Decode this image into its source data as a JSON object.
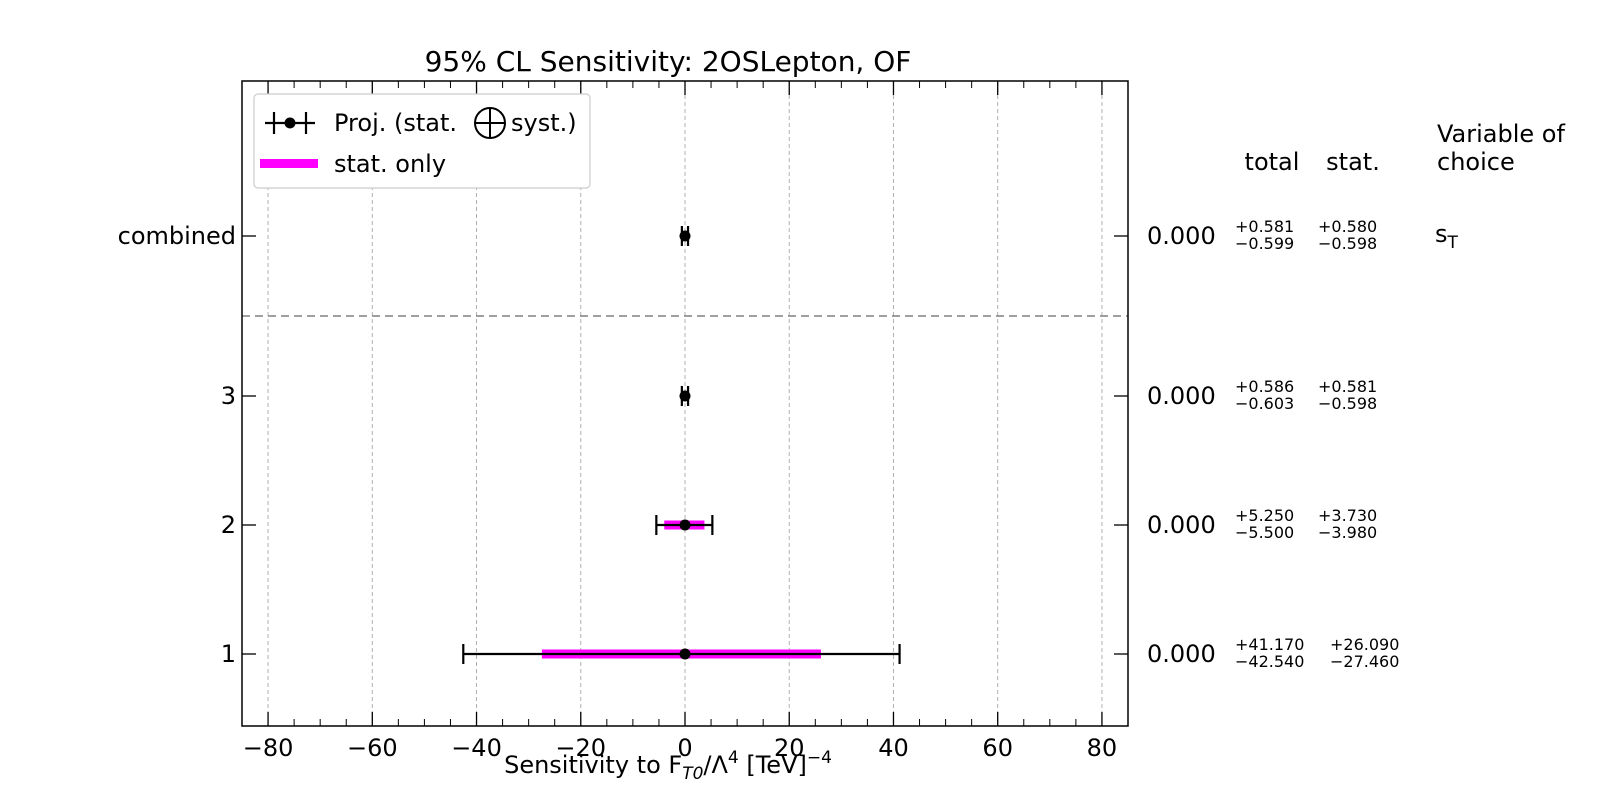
{
  "chart_data": {
    "type": "errorbar",
    "title": "95% CL Sensitivity: 2OSLepton, OF",
    "xlabel_parts": {
      "pre": "Sensitivity to F",
      "sub": "T0",
      "mid": "/Λ",
      "sup": "4",
      "post": " [TeV]",
      "sup2": "−4"
    },
    "xlim": [
      -85,
      85
    ],
    "xticks": [
      -80,
      -60,
      -40,
      -20,
      0,
      20,
      40,
      60,
      80
    ],
    "xtick_labels": [
      "−80",
      "−60",
      "−40",
      "−20",
      "0",
      "20",
      "40",
      "60",
      "80"
    ],
    "grid": true,
    "legend": {
      "placement": "top-left",
      "entries": [
        {
          "label_pre": "Proj. (stat.",
          "label_post": "syst.)",
          "style": "errorbar"
        },
        {
          "label": "stat. only",
          "style": "band",
          "color": "#ff00ff"
        }
      ]
    },
    "columns": {
      "total": "total",
      "stat": "stat.",
      "variable_line1": "Variable of",
      "variable_line2": "choice"
    },
    "rows": [
      {
        "label": "combined",
        "central": 0.0,
        "central_text": "0.000",
        "total_plus": 0.581,
        "total_minus": 0.599,
        "stat_plus": 0.58,
        "stat_minus": 0.598,
        "total_plus_text": "+0.581",
        "total_minus_text": "−0.599",
        "stat_plus_text": "+0.580",
        "stat_minus_text": "−0.598",
        "variable_base": "s",
        "variable_sub": "T"
      },
      {
        "label": "3",
        "central": 0.0,
        "central_text": "0.000",
        "total_plus": 0.586,
        "total_minus": 0.603,
        "stat_plus": 0.581,
        "stat_minus": 0.598,
        "total_plus_text": "+0.586",
        "total_minus_text": "−0.603",
        "stat_plus_text": "+0.581",
        "stat_minus_text": "−0.598"
      },
      {
        "label": "2",
        "central": 0.0,
        "central_text": "0.000",
        "total_plus": 5.25,
        "total_minus": 5.5,
        "stat_plus": 3.73,
        "stat_minus": 3.98,
        "total_plus_text": "+5.250",
        "total_minus_text": "−5.500",
        "stat_plus_text": "+3.730",
        "stat_minus_text": "−3.980"
      },
      {
        "label": "1",
        "central": 0.0,
        "central_text": "0.000",
        "total_plus": 41.17,
        "total_minus": 42.54,
        "stat_plus": 26.09,
        "stat_minus": 27.46,
        "total_plus_text": "+41.170",
        "total_minus_text": "−42.540",
        "stat_plus_text": "+26.090",
        "stat_minus_text": "−27.460"
      }
    ],
    "colors": {
      "stat_band": "#ff00ff",
      "marker": "#000000",
      "grid": "#b0b0b0",
      "separator": "#808080"
    }
  }
}
